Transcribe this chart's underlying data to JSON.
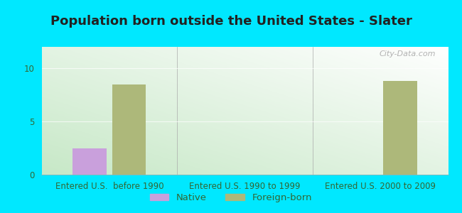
{
  "title": "Population born outside the United States - Slater",
  "categories": [
    "Entered U.S.  before 1990",
    "Entered U.S. 1990 to 1999",
    "Entered U.S. 2000 to 2009"
  ],
  "native_values": [
    2.5,
    0,
    0
  ],
  "foreign_values": [
    8.5,
    0,
    8.8
  ],
  "native_color": "#c9a0dc",
  "foreign_color": "#adb87a",
  "ylim": [
    0,
    12
  ],
  "yticks": [
    0,
    5,
    10
  ],
  "bar_width": 0.25,
  "background_color": "#00e8ff",
  "plot_bg_color": "#e0f0e0",
  "title_fontsize": 13,
  "tick_fontsize": 8.5,
  "legend_fontsize": 9.5,
  "watermark": "City-Data.com"
}
